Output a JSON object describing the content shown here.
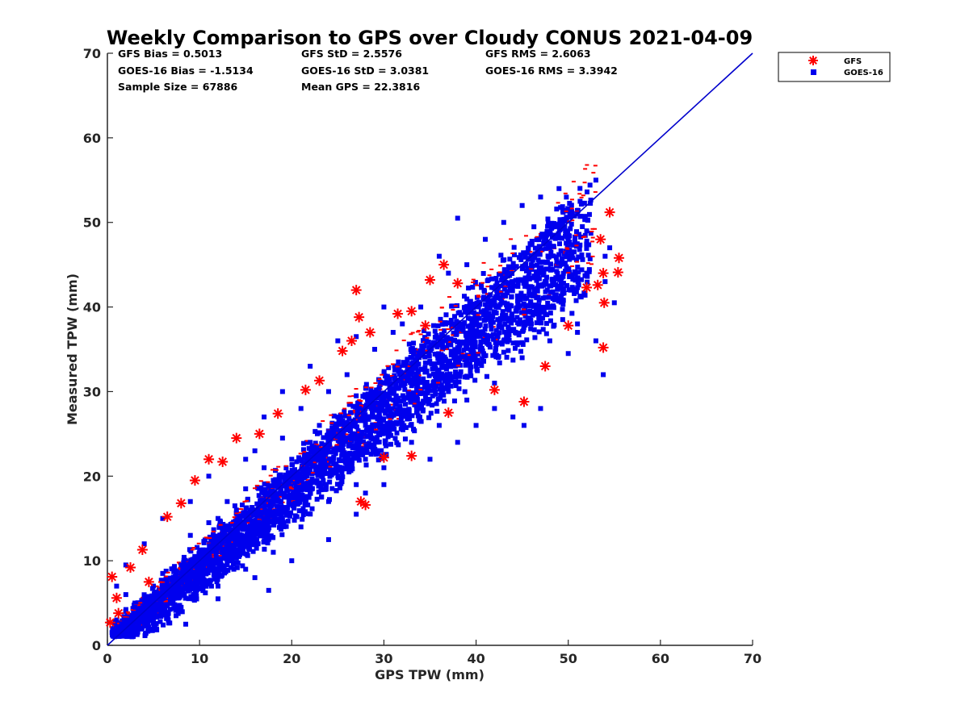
{
  "chart_data": {
    "type": "scatter",
    "title": "Weekly Comparison to GPS over Cloudy CONUS 2021-04-09",
    "xlabel": "GPS TPW (mm)",
    "ylabel": "Measured TPW (mm)",
    "xlim": [
      0,
      70
    ],
    "ylim": [
      0,
      70
    ],
    "xticks": [
      "0",
      "10",
      "20",
      "30",
      "40",
      "50",
      "60",
      "70"
    ],
    "yticks": [
      "0",
      "10",
      "20",
      "30",
      "40",
      "50",
      "60",
      "70"
    ],
    "grid": false,
    "legend_position": "outside-top-right",
    "stats": [
      "GFS Bias = 0.5013",
      "GFS StD = 2.5576",
      "GFS RMS = 2.6063",
      "GOES-16 Bias = -1.5134",
      "GOES-16 StD = 3.0381",
      "GOES-16 RMS = 3.3942",
      "Sample Size = 67886",
      "Mean GPS = 22.3816"
    ],
    "reference_line": {
      "x": [
        0,
        70
      ],
      "y": [
        0,
        70
      ],
      "color": "#0000cc"
    },
    "series": [
      {
        "name": "GFS",
        "marker": "asterisk",
        "color": "#ff0000",
        "points": [
          [
            0.5,
            8.1
          ],
          [
            1,
            5.6
          ],
          [
            2.5,
            9.2
          ],
          [
            3.8,
            11.3
          ],
          [
            6.5,
            15.2
          ],
          [
            8,
            16.8
          ],
          [
            11,
            22
          ],
          [
            12.5,
            21.7
          ],
          [
            14,
            24.5
          ],
          [
            16.5,
            25
          ],
          [
            18.5,
            27.4
          ],
          [
            21.5,
            30.2
          ],
          [
            23,
            31.3
          ],
          [
            25.5,
            34.8
          ],
          [
            26.5,
            36
          ],
          [
            27.3,
            38.8
          ],
          [
            27,
            42
          ],
          [
            28.5,
            37
          ],
          [
            31.5,
            39.2
          ],
          [
            33,
            39.5
          ],
          [
            34.5,
            37.8
          ],
          [
            35,
            43.2
          ],
          [
            36.5,
            45
          ],
          [
            38,
            42.8
          ],
          [
            28,
            16.6
          ],
          [
            27.5,
            17
          ],
          [
            30,
            22.2
          ],
          [
            33,
            22.4
          ],
          [
            37,
            27.5
          ],
          [
            42,
            30.2
          ],
          [
            45.2,
            28.8
          ],
          [
            47.5,
            33
          ],
          [
            50,
            37.8
          ],
          [
            52,
            42.3
          ],
          [
            53.2,
            42.6
          ],
          [
            53.8,
            44
          ],
          [
            55.4,
            44.1
          ],
          [
            55.5,
            45.8
          ],
          [
            54.5,
            51.2
          ],
          [
            53.5,
            48
          ],
          [
            53.8,
            35.2
          ],
          [
            53.9,
            40.5
          ],
          [
            1.2,
            3.8
          ],
          [
            0.3,
            2.7
          ],
          [
            4.5,
            7.5
          ],
          [
            9.5,
            19.5
          ]
        ]
      },
      {
        "name": "GOES-16",
        "marker": "square",
        "color": "#0000ee",
        "points": [
          [
            0.5,
            1.5
          ],
          [
            1,
            3
          ],
          [
            2,
            6
          ],
          [
            5,
            7
          ],
          [
            8,
            9.5
          ],
          [
            10,
            11
          ],
          [
            12,
            15
          ],
          [
            14,
            16
          ],
          [
            15,
            18.5
          ],
          [
            17,
            21
          ],
          [
            18,
            19.5
          ],
          [
            20,
            22
          ],
          [
            22,
            24
          ],
          [
            23,
            26
          ],
          [
            25,
            27
          ],
          [
            27,
            29.5
          ],
          [
            28,
            26
          ],
          [
            30,
            31
          ],
          [
            32,
            31
          ],
          [
            33,
            34
          ],
          [
            35,
            35
          ],
          [
            36,
            32
          ],
          [
            38,
            38
          ],
          [
            40,
            37
          ],
          [
            42,
            41
          ],
          [
            44,
            43
          ],
          [
            46,
            45
          ],
          [
            48,
            47
          ],
          [
            50,
            48
          ],
          [
            52,
            49
          ],
          [
            2,
            3
          ],
          [
            4,
            5.5
          ],
          [
            6,
            8.5
          ],
          [
            9,
            13
          ],
          [
            11,
            14.5
          ],
          [
            13,
            17
          ],
          [
            16,
            23
          ],
          [
            19,
            24.5
          ],
          [
            21,
            28
          ],
          [
            24,
            30
          ],
          [
            26,
            32
          ],
          [
            29,
            35
          ],
          [
            31,
            37
          ],
          [
            34,
            40
          ],
          [
            37,
            44
          ],
          [
            39,
            45
          ],
          [
            41,
            48
          ],
          [
            43,
            50
          ],
          [
            45,
            52
          ],
          [
            47,
            53
          ],
          [
            49,
            54
          ],
          [
            51,
            51
          ],
          [
            53,
            55
          ],
          [
            3,
            4.5
          ],
          [
            7,
            6
          ],
          [
            10,
            8.5
          ],
          [
            13,
            11
          ],
          [
            16,
            13
          ],
          [
            19,
            15
          ],
          [
            22,
            18
          ],
          [
            25,
            20
          ],
          [
            28,
            22
          ],
          [
            31,
            26
          ],
          [
            34,
            28
          ],
          [
            37,
            30
          ],
          [
            40,
            33
          ],
          [
            43,
            36
          ],
          [
            46,
            38
          ],
          [
            49,
            41
          ],
          [
            52,
            44
          ],
          [
            54,
            46
          ],
          [
            1.5,
            1.8
          ],
          [
            5,
            3
          ],
          [
            8,
            4.5
          ],
          [
            12,
            7
          ],
          [
            15,
            9
          ],
          [
            18,
            11
          ],
          [
            21,
            14
          ],
          [
            24,
            17
          ],
          [
            27,
            19
          ],
          [
            30,
            21
          ],
          [
            33,
            24
          ],
          [
            36,
            26
          ],
          [
            39,
            29
          ],
          [
            42,
            31
          ],
          [
            45,
            34
          ],
          [
            48,
            36
          ],
          [
            51,
            38
          ],
          [
            8.5,
            2.5
          ],
          [
            12,
            5.5
          ],
          [
            16,
            8
          ],
          [
            17.5,
            6.5
          ],
          [
            20,
            10
          ],
          [
            24,
            12.5
          ],
          [
            27,
            15.5
          ],
          [
            28,
            18
          ],
          [
            30,
            19
          ],
          [
            35,
            22
          ],
          [
            38,
            24
          ],
          [
            40,
            26
          ],
          [
            42,
            28
          ],
          [
            44,
            27
          ],
          [
            45.2,
            26
          ],
          [
            47,
            28
          ],
          [
            50,
            34.5
          ],
          [
            51,
            37
          ],
          [
            53,
            36
          ],
          [
            53.8,
            32
          ],
          [
            54,
            43
          ],
          [
            54.5,
            47
          ],
          [
            55,
            40.5
          ],
          [
            38,
            50.5
          ],
          [
            36,
            46
          ],
          [
            32,
            38
          ],
          [
            30,
            40
          ],
          [
            27,
            36.5
          ],
          [
            25,
            36
          ],
          [
            22,
            33
          ],
          [
            19,
            30
          ],
          [
            17,
            27
          ],
          [
            15,
            22
          ],
          [
            11,
            20
          ],
          [
            9,
            17
          ],
          [
            6,
            15
          ],
          [
            4,
            12
          ],
          [
            2,
            9.5
          ],
          [
            1,
            7
          ]
        ]
      }
    ]
  }
}
